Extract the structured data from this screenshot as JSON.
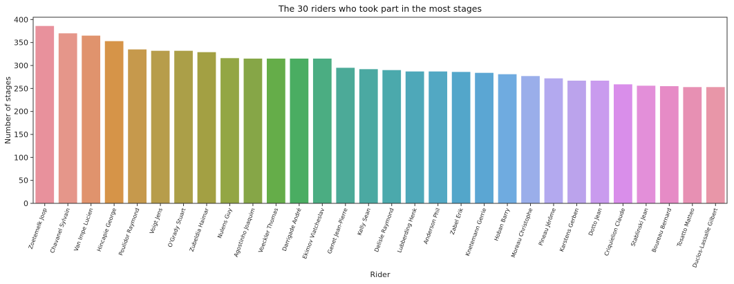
{
  "chart_data": {
    "type": "bar",
    "title": "The 30 riders who took part in the most stages",
    "xlabel": "Rider",
    "ylabel": "Number of stages",
    "ylim": [
      0,
      405
    ],
    "yticks": [
      0,
      50,
      100,
      150,
      200,
      250,
      300,
      350,
      400
    ],
    "grid": false,
    "categories": [
      "Zoetemelk Joop",
      "Chavanel Sylvain",
      "Van Impe Lucien",
      "Hincapie George",
      "Poulidor Raymond",
      "Voigt Jens",
      "O'Grady Stuart",
      "Zubeldia Haimar",
      "Nulens Guy",
      "Agostinho Joaquim",
      "Voeckler Thomas",
      "Darrigade André",
      "Ekimov Viatcheslav",
      "Genet Jean-Pierre",
      "Kelly Sean",
      "Delisle Raymond",
      "Lubberding Henk",
      "Anderson Phil",
      "Zabel Erik",
      "Knetemann Gerrie",
      "Hoban Barry",
      "Moreau Christophe",
      "Pineau Jérôme",
      "Karstens Gerben",
      "Dotto Jean",
      "Criquielion Claude",
      "Stablinski Jean",
      "Boureau Bernard",
      "Tosatto Matteo",
      "Duclos-Lassalle Gilbert"
    ],
    "values": [
      386,
      370,
      365,
      353,
      335,
      332,
      332,
      329,
      316,
      315,
      315,
      315,
      315,
      295,
      292,
      290,
      287,
      287,
      286,
      284,
      281,
      277,
      272,
      267,
      267,
      259,
      256,
      255,
      253,
      253
    ],
    "colors": [
      "#e8919c",
      "#e5968a",
      "#e0936d",
      "#d69448",
      "#c6994c",
      "#b79d4b",
      "#ab9f48",
      "#a3a043",
      "#93a644",
      "#86a647",
      "#65ad49",
      "#4aad62",
      "#4bad82",
      "#4caa98",
      "#4ba9a2",
      "#4ba9ac",
      "#4ea8b9",
      "#52a8c3",
      "#53a6ca",
      "#5ba6d3",
      "#6fabe0",
      "#9aaeea",
      "#b3a9ef",
      "#bba3ec",
      "#c99bee",
      "#d98eea",
      "#e38fd9",
      "#e68bc6",
      "#e790b3",
      "#e896a8"
    ]
  }
}
